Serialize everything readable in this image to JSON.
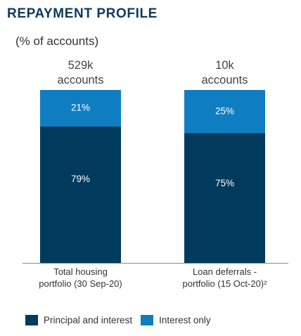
{
  "title": "REPAYMENT PROFILE",
  "subtitle": "(% of accounts)",
  "colors": {
    "title": "#0d3a5e",
    "principal_and_interest": "#003a5c",
    "interest_only": "#0f7dc1",
    "axis": "#8a8a8a"
  },
  "chart_data": {
    "type": "bar",
    "stacked": true,
    "unit": "%",
    "ylim": [
      0,
      100
    ],
    "categories": [
      {
        "line1": "Total housing",
        "line2": "portfolio (30 Sep-20)",
        "total_line1": "529k",
        "total_line2": "accounts"
      },
      {
        "line1": "Loan deferrals -",
        "line2": "portfolio (15 Oct-20)²",
        "total_line1": "10k",
        "total_line2": "accounts"
      }
    ],
    "series": [
      {
        "name": "Principal and interest",
        "color": "#003a5c",
        "values": [
          79,
          75
        ],
        "labels": [
          "79%",
          "75%"
        ],
        "label_color": "#ffffff"
      },
      {
        "name": "Interest only",
        "color": "#0f7dc1",
        "values": [
          21,
          25
        ],
        "labels": [
          "21%",
          "25%"
        ],
        "label_color": "#ffffff"
      }
    ],
    "legend_position": "bottom-left",
    "grid": false
  },
  "legend": {
    "principal_and_interest": "Principal and interest",
    "interest_only": "Interest only"
  }
}
